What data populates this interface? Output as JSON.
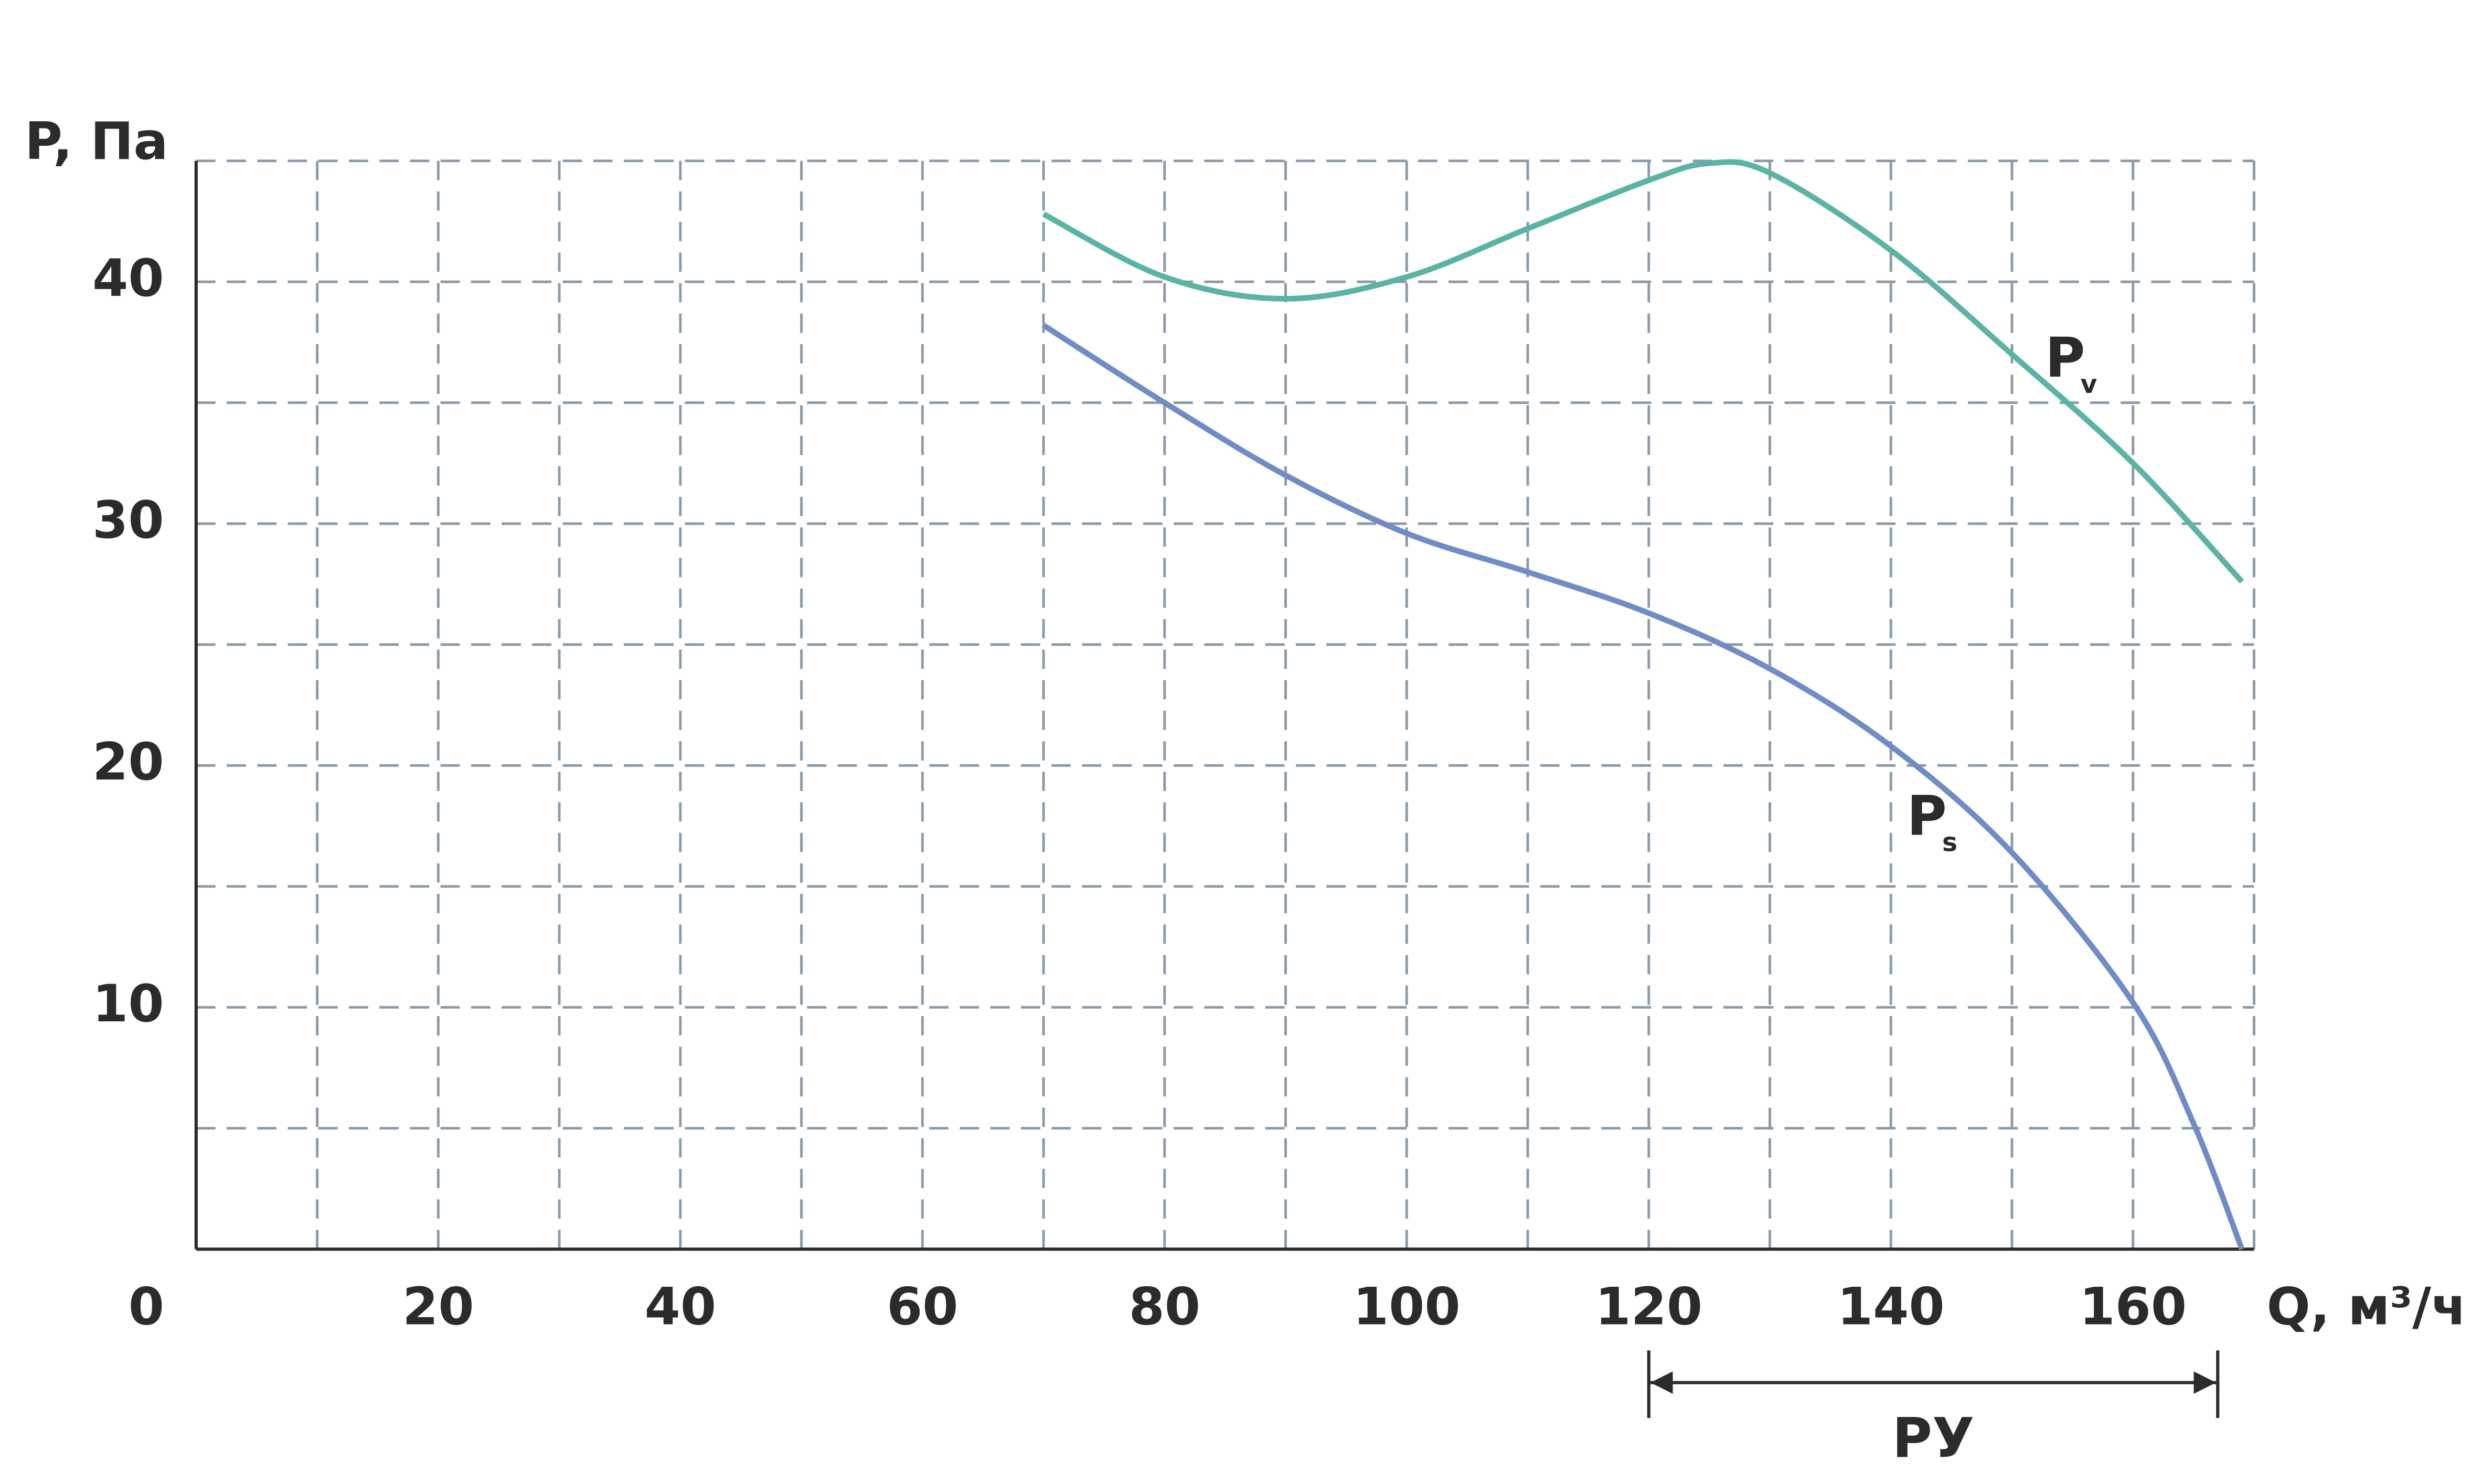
{
  "chart_data": {
    "type": "line",
    "y_label": "P, Па",
    "x_label": "Q, м³/ч",
    "xlim": [
      0,
      170
    ],
    "ylim": [
      0,
      45
    ],
    "xticks": [
      0,
      20,
      40,
      60,
      80,
      100,
      120,
      140,
      160
    ],
    "xminorticks": [
      10,
      30,
      50,
      70,
      90,
      110,
      130,
      150,
      170
    ],
    "yticks": [
      10,
      20,
      30,
      40
    ],
    "yminorticks": [
      5,
      15,
      25,
      35,
      45
    ],
    "grid": true,
    "series": [
      {
        "name": "P",
        "subscript": "v",
        "color": "#5bb3a6",
        "x": [
          70,
          80,
          90,
          100,
          110,
          120,
          125,
          130,
          140,
          150,
          160,
          169
        ],
        "values": [
          42.8,
          40.2,
          39.3,
          40.2,
          42.2,
          44.2,
          44.9,
          44.5,
          41.3,
          37.0,
          32.5,
          27.6
        ]
      },
      {
        "name": "P",
        "subscript": "s",
        "color": "#6f8cc4",
        "x": [
          70,
          80,
          90,
          100,
          110,
          120,
          130,
          140,
          150,
          160,
          165,
          169
        ],
        "values": [
          38.2,
          35.0,
          32.0,
          29.6,
          28.0,
          26.3,
          24.0,
          20.8,
          16.4,
          10.2,
          5.2,
          0
        ]
      }
    ],
    "range": {
      "label": "РУ",
      "from": 120,
      "to": 167
    }
  }
}
